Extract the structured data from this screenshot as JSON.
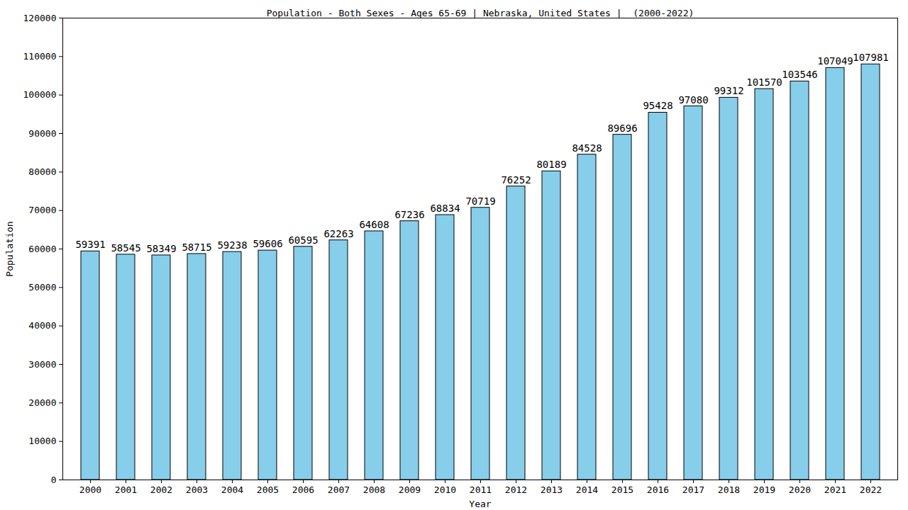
{
  "chart_data": {
    "type": "bar",
    "title": "Population - Both Sexes - Ages 65-69 | Nebraska, United States |  (2000-2022)",
    "x_label": "Year",
    "y_label": "Population",
    "categories": [
      "2000",
      "2001",
      "2002",
      "2003",
      "2004",
      "2005",
      "2006",
      "2007",
      "2008",
      "2009",
      "2010",
      "2011",
      "2012",
      "2013",
      "2014",
      "2015",
      "2016",
      "2017",
      "2018",
      "2019",
      "2020",
      "2021",
      "2022"
    ],
    "values": [
      59391,
      58545,
      58349,
      58715,
      59238,
      59606,
      60595,
      62263,
      64608,
      67236,
      68834,
      70719,
      76252,
      80189,
      84528,
      89696,
      95428,
      97080,
      99312,
      101570,
      103546,
      107049,
      107981
    ],
    "color": "#87ceeb",
    "ylim": [
      0,
      120000
    ],
    "yticks": [
      0,
      10000,
      20000,
      30000,
      40000,
      50000,
      60000,
      70000,
      80000,
      90000,
      100000,
      110000,
      120000
    ],
    "grid": false,
    "data_labels": true
  }
}
